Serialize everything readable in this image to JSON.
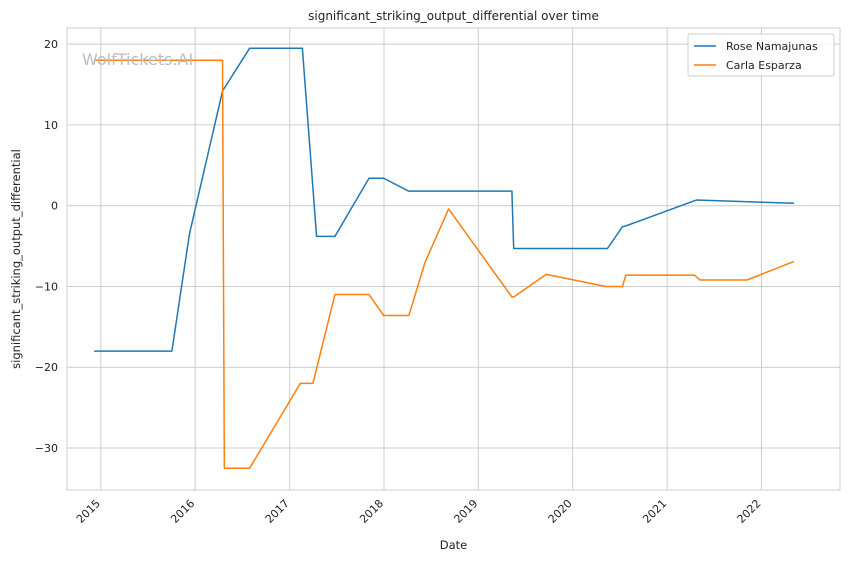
{
  "chart_data": {
    "type": "line",
    "title": "significant_striking_output_differential over time",
    "xlabel": "Date",
    "ylabel": "significant_striking_output_differential",
    "x_tick_labels": [
      "2015",
      "2016",
      "2017",
      "2018",
      "2019",
      "2020",
      "2021",
      "2022"
    ],
    "y_tick_labels": [
      "20",
      "10",
      "0",
      "−10",
      "−20",
      "−30"
    ],
    "xlim": [
      "2014-08-23",
      "2022-11-01"
    ],
    "ylim": [
      -35.2,
      22.0
    ],
    "y_ticks": [
      20,
      10,
      0,
      -10,
      -20,
      -30
    ],
    "grid": true,
    "legend_position": "top-right",
    "watermark": "WolfTickets.AI",
    "series": [
      {
        "name": "Rose Namajunas",
        "color": "#1f77b4",
        "points": [
          [
            "2014-12-06",
            -18.0
          ],
          [
            "2015-10-03",
            -18.0
          ],
          [
            "2015-12-10",
            -3.5
          ],
          [
            "2016-04-16",
            14.2
          ],
          [
            "2016-07-30",
            19.5
          ],
          [
            "2017-02-19",
            19.5
          ],
          [
            "2017-04-15",
            -3.8
          ],
          [
            "2017-06-25",
            -3.8
          ],
          [
            "2017-11-04",
            3.4
          ],
          [
            "2017-12-31",
            3.4
          ],
          [
            "2018-04-07",
            1.8
          ],
          [
            "2019-05-11",
            1.8
          ],
          [
            "2019-05-18",
            -5.3
          ],
          [
            "2020-05-15",
            -5.3
          ],
          [
            "2020-07-12",
            -2.6
          ],
          [
            "2020-07-25",
            -2.5
          ],
          [
            "2021-04-24",
            0.7
          ],
          [
            "2022-05-07",
            0.3
          ]
        ]
      },
      {
        "name": "Carla Esparza",
        "color": "#ff7f0e",
        "points": [
          [
            "2014-12-06",
            18.0
          ],
          [
            "2016-04-16",
            18.0
          ],
          [
            "2016-04-23",
            -32.5
          ],
          [
            "2016-07-30",
            -32.5
          ],
          [
            "2017-02-11",
            -22.0
          ],
          [
            "2017-04-01",
            -22.0
          ],
          [
            "2017-06-25",
            -11.0
          ],
          [
            "2017-11-04",
            -11.0
          ],
          [
            "2017-12-31",
            -13.6
          ],
          [
            "2018-04-07",
            -13.6
          ],
          [
            "2018-06-09",
            -7.0
          ],
          [
            "2018-09-08",
            -0.4
          ],
          [
            "2019-05-11",
            -11.3
          ],
          [
            "2019-05-18",
            -11.3
          ],
          [
            "2019-09-21",
            -8.5
          ],
          [
            "2020-05-09",
            -10.0
          ],
          [
            "2020-07-12",
            -10.0
          ],
          [
            "2020-07-25",
            -8.6
          ],
          [
            "2021-04-17",
            -8.6
          ],
          [
            "2021-05-08",
            -9.2
          ],
          [
            "2021-11-06",
            -9.2
          ],
          [
            "2022-05-07",
            -6.9
          ]
        ]
      }
    ]
  }
}
